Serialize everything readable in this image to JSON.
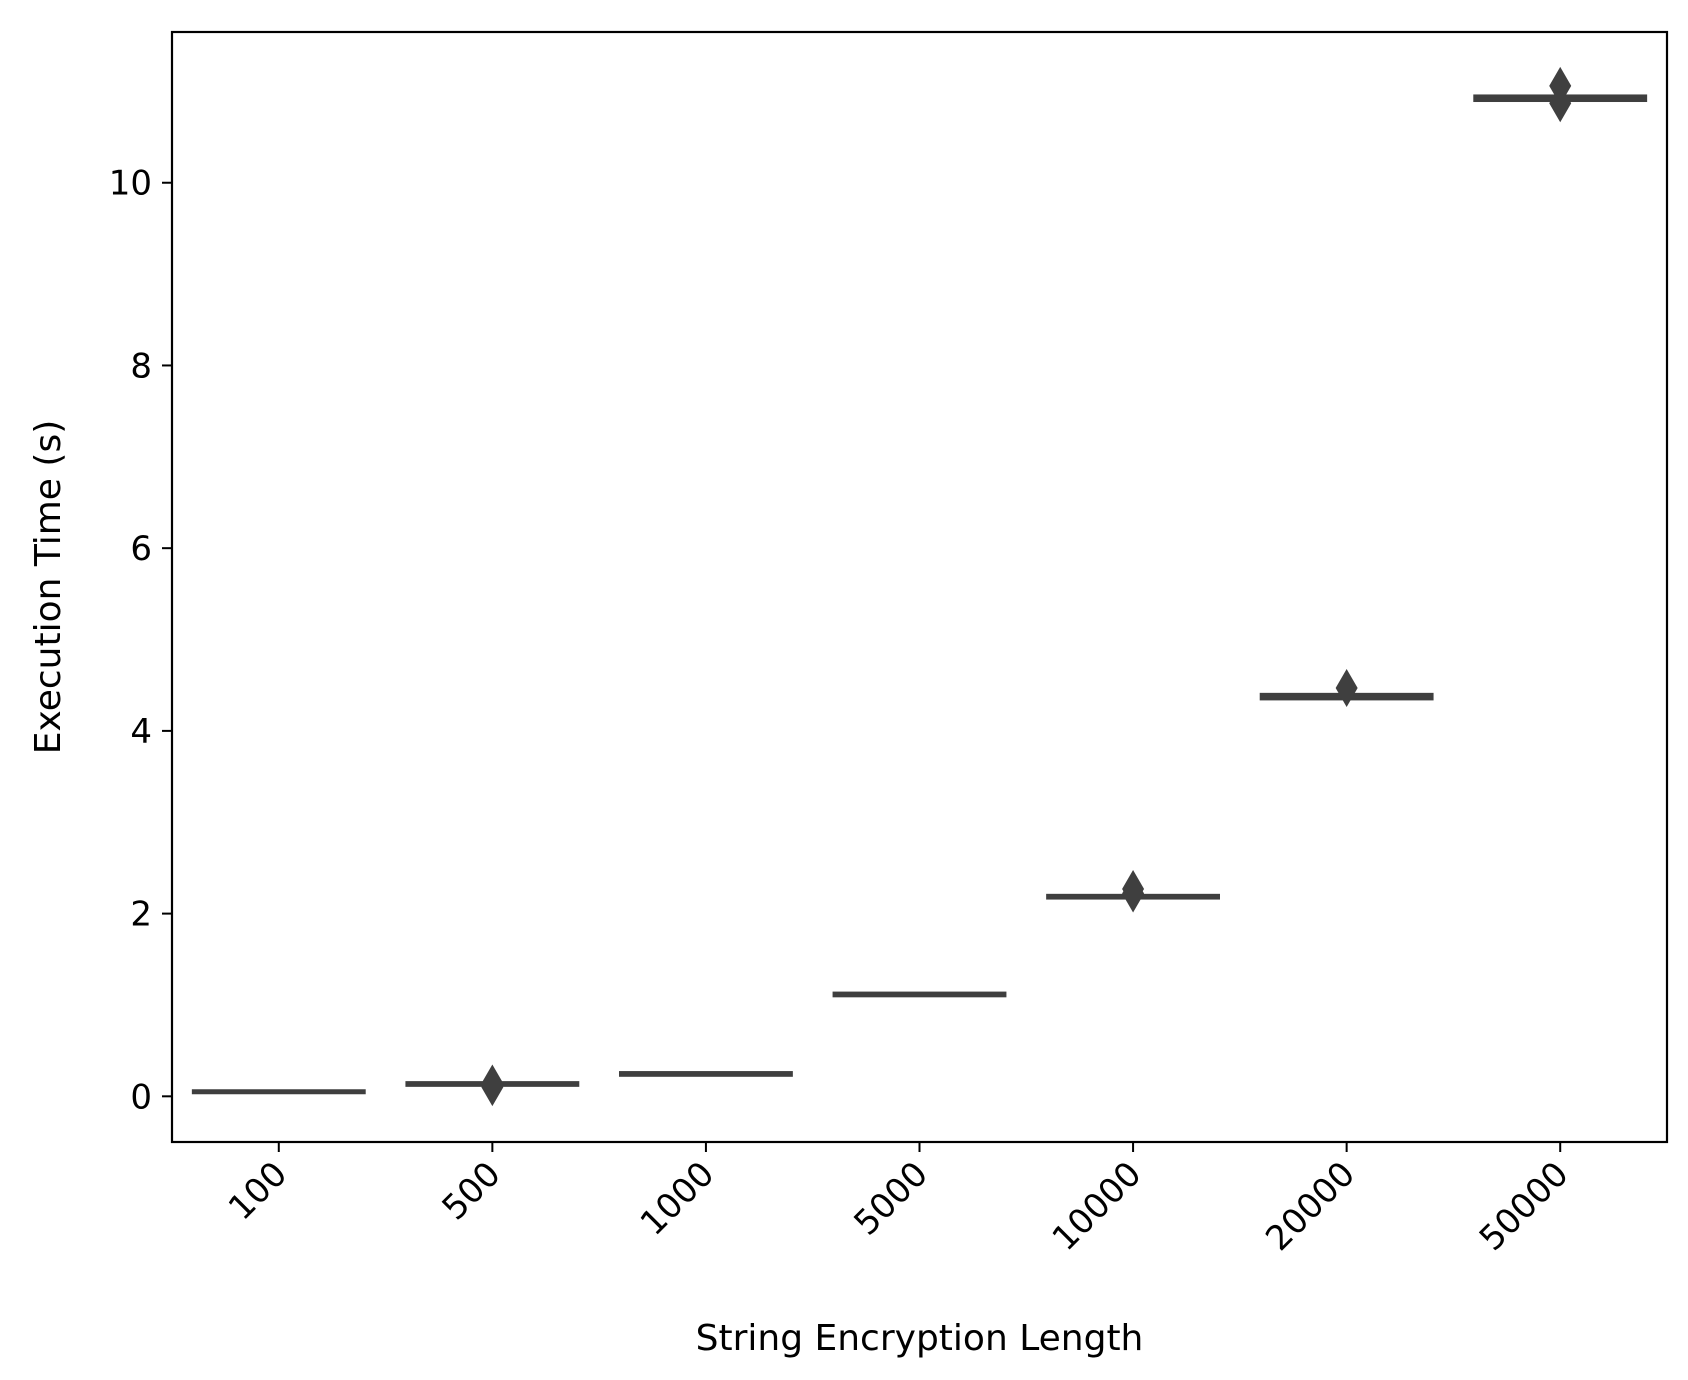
{
  "chart_data": {
    "type": "box",
    "xlabel": "String Encryption Length",
    "ylabel": "Execution Time (s)",
    "categories": [
      "100",
      "500",
      "1000",
      "5000",
      "10000",
      "20000",
      "50000"
    ],
    "ylim": [
      -0.5,
      11.65
    ],
    "yticks": [
      0,
      2,
      4,
      6,
      8,
      10
    ],
    "grid": false,
    "box_color": "#3f3f3f",
    "boxes": [
      {
        "category": "100",
        "q1": 0.04,
        "median": 0.05,
        "q3": 0.06,
        "outliers": []
      },
      {
        "category": "500",
        "q1": 0.12,
        "median": 0.13,
        "q3": 0.15,
        "outliers": [
          0.14,
          0.1
        ]
      },
      {
        "category": "1000",
        "q1": 0.23,
        "median": 0.245,
        "q3": 0.26,
        "outliers": []
      },
      {
        "category": "5000",
        "q1": 1.1,
        "median": 1.11,
        "q3": 1.13,
        "outliers": []
      },
      {
        "category": "10000",
        "q1": 2.17,
        "median": 2.18,
        "q3": 2.2,
        "outliers": [
          2.27,
          2.22
        ]
      },
      {
        "category": "20000",
        "q1": 4.35,
        "median": 4.37,
        "q3": 4.4,
        "outliers": [
          4.47
        ]
      },
      {
        "category": "50000",
        "q1": 10.9,
        "median": 10.92,
        "q3": 10.95,
        "outliers": [
          11.06,
          10.87
        ]
      }
    ]
  }
}
